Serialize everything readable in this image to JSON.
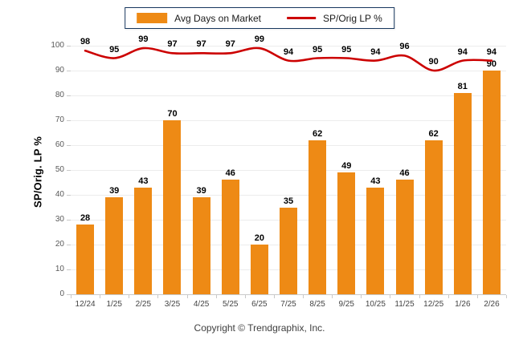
{
  "legend": {
    "bar_label": "Avg Days on Market",
    "line_label": "SP/Orig LP %"
  },
  "y_axis_title": "SP/Orig. LP %",
  "footer_text": "Copyright © Trendgraphix, Inc.",
  "colors": {
    "bar": "#EE8A15",
    "line": "#CC0000",
    "legend_border": "#17375E",
    "grid": "#ECECEC",
    "axis_line": "#C9C9C9",
    "tick_text": "#595959",
    "value_label_text": "#000000"
  },
  "chart_data": {
    "type": "bar",
    "subtype": "bar-with-line-overlay",
    "categories": [
      "12/24",
      "1/25",
      "2/25",
      "3/25",
      "4/25",
      "5/25",
      "6/25",
      "7/25",
      "8/25",
      "9/25",
      "10/25",
      "11/25",
      "12/25",
      "1/26",
      "2/26"
    ],
    "series": [
      {
        "name": "Avg Days on Market",
        "type": "bar",
        "values": [
          28,
          39,
          43,
          70,
          39,
          46,
          20,
          35,
          62,
          49,
          43,
          46,
          62,
          81,
          90
        ]
      },
      {
        "name": "SP/Orig LP %",
        "type": "line",
        "values": [
          98,
          95,
          99,
          97,
          97,
          97,
          99,
          94,
          95,
          95,
          94,
          96,
          90,
          94,
          94
        ]
      }
    ],
    "title": "",
    "xlabel": "",
    "ylabel": "SP/Orig. LP %",
    "ylim": [
      0,
      100
    ],
    "yticks": [
      0,
      10,
      20,
      30,
      40,
      50,
      60,
      70,
      80,
      90,
      100
    ],
    "grid": true,
    "legend_position": "top-center",
    "data_labels": true
  }
}
